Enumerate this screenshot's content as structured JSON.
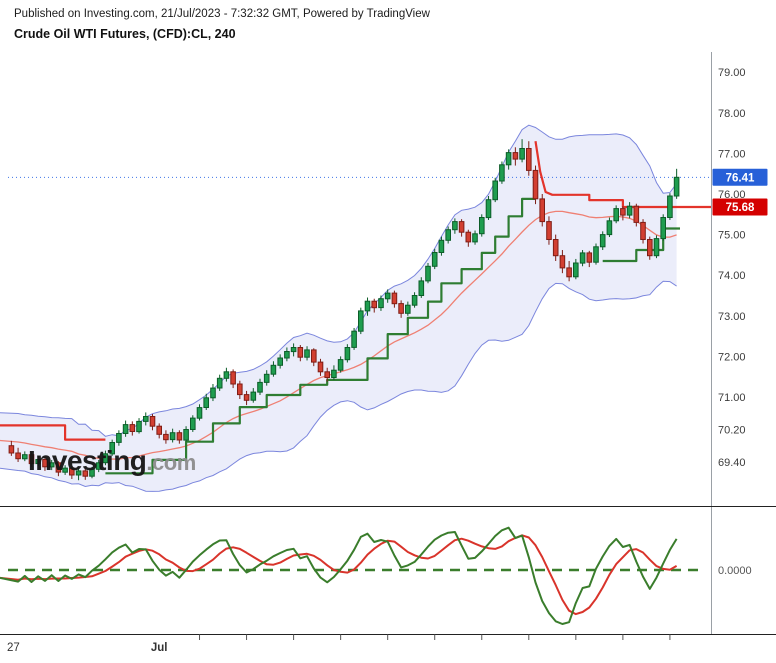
{
  "header": {
    "published_line": "Published on Investing.com, 21/Jul/2023 - 7:32:32 GMT, Powered by TradingView",
    "instrument_title": "Crude Oil WTI Futures, (CFD):CL, 240"
  },
  "watermark": {
    "main": "Investing",
    "suffix": ".com"
  },
  "price_axis": {
    "labels": [
      "79.00",
      "78.00",
      "77.00",
      "76.00",
      "75.00",
      "74.00",
      "73.00",
      "72.00",
      "71.00",
      "70.20",
      "69.40"
    ],
    "values": [
      79.0,
      78.0,
      77.0,
      76.0,
      75.0,
      74.0,
      73.0,
      72.0,
      71.0,
      70.2,
      69.4
    ]
  },
  "price_labels": {
    "last_price": {
      "text": "76.41",
      "value": 76.41,
      "bg": "#2760d8",
      "line_color": "#3f76e8"
    },
    "stop_price": {
      "text": "75.68",
      "value": 75.68,
      "bg": "#d40000",
      "line_color": "#e3342b"
    }
  },
  "time_axis": {
    "labels": [
      {
        "text": "27",
        "bar": 0.3,
        "bold": false
      },
      {
        "text": "Jul",
        "bar": 22,
        "bold": true
      }
    ],
    "tick_bars": [
      28,
      35,
      42,
      49,
      56,
      63,
      70,
      77,
      84,
      91,
      98
    ]
  },
  "oscillator": {
    "zero_label": "0.0000",
    "fast_period": 10,
    "smooth_period": 6,
    "green_color": "#3a7d2c",
    "red_color": "#d9342b",
    "zero_color": "#3a7d2c"
  },
  "chart_data": {
    "type": "candlestick",
    "title": "Crude Oil WTI Futures, (CFD):CL, 240",
    "timeframe_minutes": 240,
    "ylim": [
      68.34,
      79.3
    ],
    "legend_position": "none",
    "grid": false,
    "candles": [
      [
        69.8,
        69.92,
        69.55,
        69.62
      ],
      [
        69.62,
        69.75,
        69.4,
        69.48
      ],
      [
        69.48,
        69.66,
        69.42,
        69.58
      ],
      [
        69.58,
        69.64,
        69.28,
        69.36
      ],
      [
        69.36,
        69.55,
        69.3,
        69.46
      ],
      [
        69.46,
        69.52,
        69.18,
        69.28
      ],
      [
        69.28,
        69.45,
        69.2,
        69.38
      ],
      [
        69.38,
        69.42,
        69.05,
        69.15
      ],
      [
        69.15,
        69.32,
        69.08,
        69.25
      ],
      [
        69.25,
        69.3,
        68.98,
        69.08
      ],
      [
        69.08,
        69.25,
        68.95,
        69.18
      ],
      [
        69.18,
        69.24,
        68.96,
        69.05
      ],
      [
        69.05,
        69.28,
        69.0,
        69.22
      ],
      [
        69.22,
        69.45,
        69.15,
        69.38
      ],
      [
        69.38,
        69.68,
        69.32,
        69.6
      ],
      [
        69.6,
        69.95,
        69.55,
        69.88
      ],
      [
        69.88,
        70.18,
        69.8,
        70.1
      ],
      [
        70.1,
        70.42,
        70.02,
        70.32
      ],
      [
        70.32,
        70.4,
        70.05,
        70.15
      ],
      [
        70.15,
        70.48,
        70.1,
        70.4
      ],
      [
        70.4,
        70.62,
        70.3,
        70.52
      ],
      [
        70.52,
        70.58,
        70.18,
        70.28
      ],
      [
        70.28,
        70.35,
        69.98,
        70.08
      ],
      [
        70.08,
        70.18,
        69.85,
        69.95
      ],
      [
        69.95,
        70.22,
        69.88,
        70.12
      ],
      [
        70.12,
        70.18,
        69.85,
        69.94
      ],
      [
        69.94,
        70.28,
        69.9,
        70.2
      ],
      [
        70.2,
        70.55,
        70.14,
        70.48
      ],
      [
        70.48,
        70.82,
        70.42,
        70.74
      ],
      [
        70.74,
        71.08,
        70.68,
        70.98
      ],
      [
        70.98,
        71.32,
        70.9,
        71.22
      ],
      [
        71.22,
        71.55,
        71.15,
        71.46
      ],
      [
        71.46,
        71.72,
        71.38,
        71.62
      ],
      [
        71.62,
        71.68,
        71.22,
        71.32
      ],
      [
        71.32,
        71.4,
        70.95,
        71.06
      ],
      [
        71.06,
        71.15,
        70.8,
        70.92
      ],
      [
        70.92,
        71.22,
        70.86,
        71.12
      ],
      [
        71.12,
        71.45,
        71.05,
        71.36
      ],
      [
        71.36,
        71.66,
        71.28,
        71.56
      ],
      [
        71.56,
        71.88,
        71.5,
        71.78
      ],
      [
        71.78,
        72.05,
        71.7,
        71.96
      ],
      [
        71.96,
        72.22,
        71.88,
        72.12
      ],
      [
        72.12,
        72.32,
        72.0,
        72.22
      ],
      [
        72.22,
        72.28,
        71.88,
        71.98
      ],
      [
        71.98,
        72.25,
        71.9,
        72.16
      ],
      [
        72.16,
        72.2,
        71.76,
        71.86
      ],
      [
        71.86,
        71.94,
        71.52,
        71.62
      ],
      [
        71.62,
        71.72,
        71.38,
        71.48
      ],
      [
        71.48,
        71.78,
        71.42,
        71.66
      ],
      [
        71.66,
        72.0,
        71.6,
        71.92
      ],
      [
        71.92,
        72.3,
        71.85,
        72.22
      ],
      [
        72.22,
        72.7,
        72.16,
        72.62
      ],
      [
        72.62,
        73.2,
        72.55,
        73.12
      ],
      [
        73.12,
        73.45,
        73.0,
        73.36
      ],
      [
        73.36,
        73.42,
        73.08,
        73.2
      ],
      [
        73.2,
        73.5,
        73.12,
        73.42
      ],
      [
        73.42,
        73.65,
        73.32,
        73.56
      ],
      [
        73.56,
        73.62,
        73.2,
        73.3
      ],
      [
        73.3,
        73.38,
        72.95,
        73.06
      ],
      [
        73.06,
        73.35,
        73.0,
        73.26
      ],
      [
        73.26,
        73.58,
        73.2,
        73.5
      ],
      [
        73.5,
        73.95,
        73.44,
        73.86
      ],
      [
        73.86,
        74.3,
        73.8,
        74.22
      ],
      [
        74.22,
        74.65,
        74.15,
        74.56
      ],
      [
        74.56,
        74.95,
        74.48,
        74.86
      ],
      [
        74.86,
        75.2,
        74.78,
        75.12
      ],
      [
        75.12,
        75.4,
        75.02,
        75.32
      ],
      [
        75.32,
        75.38,
        74.95,
        75.06
      ],
      [
        75.06,
        75.12,
        74.7,
        74.82
      ],
      [
        74.82,
        75.1,
        74.75,
        75.02
      ],
      [
        75.02,
        75.5,
        74.95,
        75.42
      ],
      [
        75.42,
        75.95,
        75.36,
        75.86
      ],
      [
        75.86,
        76.4,
        75.8,
        76.32
      ],
      [
        76.32,
        76.8,
        76.25,
        76.72
      ],
      [
        76.72,
        77.1,
        76.6,
        77.02
      ],
      [
        77.02,
        77.15,
        76.7,
        76.86
      ],
      [
        76.86,
        77.35,
        76.78,
        77.12
      ],
      [
        77.12,
        77.3,
        76.45,
        76.58
      ],
      [
        76.58,
        76.7,
        75.75,
        75.88
      ],
      [
        75.88,
        76.0,
        75.2,
        75.32
      ],
      [
        75.32,
        75.45,
        74.75,
        74.88
      ],
      [
        74.88,
        75.0,
        74.35,
        74.48
      ],
      [
        74.48,
        74.62,
        74.05,
        74.18
      ],
      [
        74.18,
        74.35,
        73.85,
        73.96
      ],
      [
        73.96,
        74.4,
        73.9,
        74.3
      ],
      [
        74.3,
        74.62,
        74.22,
        74.55
      ],
      [
        74.55,
        74.6,
        74.2,
        74.32
      ],
      [
        74.32,
        74.78,
        74.26,
        74.7
      ],
      [
        74.7,
        75.08,
        74.62,
        75.0
      ],
      [
        75.0,
        75.42,
        74.94,
        75.34
      ],
      [
        75.34,
        75.72,
        75.28,
        75.64
      ],
      [
        75.64,
        75.7,
        75.35,
        75.48
      ],
      [
        75.48,
        75.8,
        75.4,
        75.7
      ],
      [
        75.7,
        75.76,
        75.2,
        75.3
      ],
      [
        75.3,
        75.38,
        74.78,
        74.88
      ],
      [
        74.88,
        74.95,
        74.38,
        74.48
      ],
      [
        74.48,
        74.98,
        74.42,
        74.9
      ],
      [
        74.9,
        75.5,
        74.85,
        75.42
      ],
      [
        75.42,
        76.02,
        75.36,
        75.95
      ],
      [
        75.95,
        76.62,
        75.88,
        76.41
      ]
    ],
    "bb_seed_closes": [
      70.5,
      69.7,
      70.4,
      69.6,
      70.3,
      69.6,
      70.2,
      69.6,
      70.0,
      69.7
    ],
    "bollinger": {
      "period": 20,
      "mult": 2,
      "stroke": "#7b86dd",
      "fill": "rgba(123,134,221,0.15)",
      "mid_color": "#ef8073"
    },
    "candle_colors": {
      "up_fill": "#1f9d4f",
      "up_border": "#0c5d28",
      "down_fill": "#d23f31",
      "down_border": "#7e1d15"
    },
    "supertrend_segments": [
      {
        "color": "#e3342b",
        "points": [
          [
            -1.7,
            70.3
          ],
          [
            8,
            70.3
          ],
          [
            8,
            69.95
          ],
          [
            14,
            69.95
          ]
        ]
      },
      {
        "color": "#2e7d32",
        "points": [
          [
            14,
            69.12
          ],
          [
            21,
            69.12
          ],
          [
            21,
            69.45
          ],
          [
            26,
            69.45
          ],
          [
            26,
            69.9
          ],
          [
            30,
            69.9
          ],
          [
            30,
            70.35
          ],
          [
            34,
            70.35
          ],
          [
            34,
            70.75
          ],
          [
            38,
            70.75
          ],
          [
            38,
            71.05
          ],
          [
            43,
            71.05
          ],
          [
            43,
            71.3
          ],
          [
            47,
            71.3
          ],
          [
            47,
            71.42
          ],
          [
            53,
            71.42
          ],
          [
            53,
            71.95
          ],
          [
            56,
            71.95
          ],
          [
            56,
            72.55
          ],
          [
            59,
            72.55
          ],
          [
            59,
            72.95
          ],
          [
            62,
            72.95
          ],
          [
            62,
            73.35
          ],
          [
            64,
            73.35
          ],
          [
            64,
            73.8
          ],
          [
            67,
            73.8
          ],
          [
            67,
            74.15
          ],
          [
            70,
            74.15
          ],
          [
            70,
            74.55
          ],
          [
            72,
            74.55
          ],
          [
            72,
            74.95
          ],
          [
            74,
            74.95
          ],
          [
            74,
            75.45
          ],
          [
            76,
            75.45
          ],
          [
            76,
            75.88
          ],
          [
            78,
            75.88
          ]
        ]
      },
      {
        "color": "#e3342b",
        "points": [
          [
            78,
            77.3
          ],
          [
            78.7,
            76.55
          ],
          [
            79.5,
            76.05
          ],
          [
            80.5,
            75.98
          ],
          [
            86,
            75.98
          ],
          [
            86,
            75.85
          ],
          [
            91,
            75.85
          ],
          [
            91,
            75.68
          ],
          [
            105,
            75.68
          ]
        ]
      },
      {
        "color": "#2e7d32",
        "points": [
          [
            88,
            74.35
          ],
          [
            93,
            74.35
          ],
          [
            93,
            74.62
          ],
          [
            97,
            74.62
          ],
          [
            97,
            75.15
          ],
          [
            99.5,
            75.15
          ]
        ]
      }
    ]
  }
}
